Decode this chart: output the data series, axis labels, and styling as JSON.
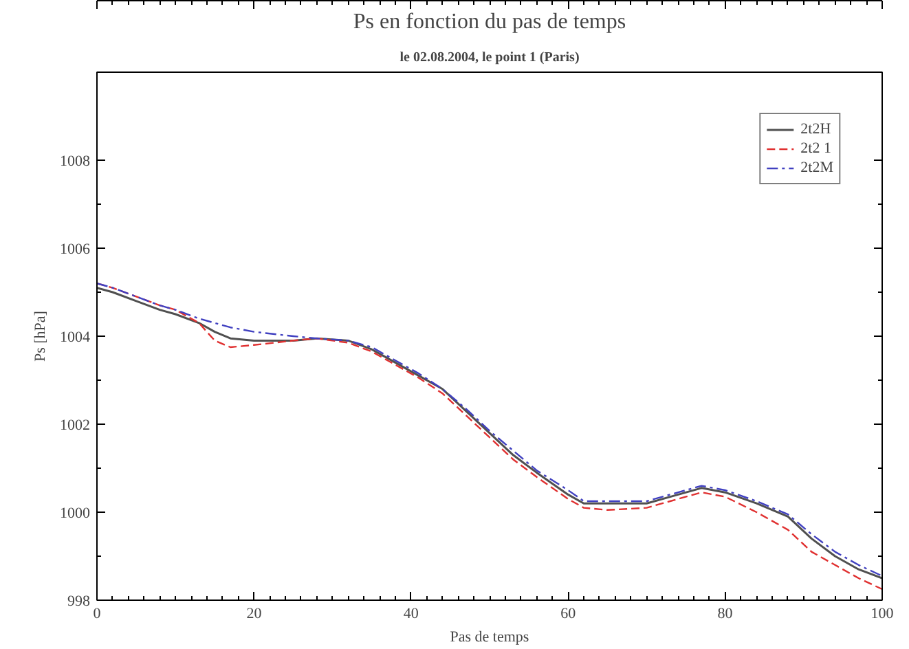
{
  "chart_data": {
    "type": "line",
    "title": "Ps en fonction du pas de temps",
    "subtitle": "le 02.08.2004, le point 1 (Paris)",
    "xlabel": "Pas de temps",
    "ylabel": "Ps [hPa]",
    "x": [
      0,
      2,
      5,
      8,
      10,
      13,
      15,
      17,
      20,
      25,
      28,
      32,
      35,
      38,
      41,
      44,
      47,
      50,
      53,
      56,
      60,
      62,
      65,
      70,
      73,
      77,
      80,
      84,
      88,
      91,
      94,
      97,
      100
    ],
    "series": [
      {
        "name": "2t2H",
        "color": "#505050",
        "line_style": "solid",
        "values": [
          1005.1,
          1005.0,
          1004.8,
          1004.6,
          1004.5,
          1004.3,
          1004.1,
          1003.95,
          1003.9,
          1003.9,
          1003.95,
          1003.9,
          1003.7,
          1003.4,
          1003.1,
          1002.8,
          1002.3,
          1001.8,
          1001.3,
          1000.9,
          1000.4,
          1000.2,
          1000.2,
          1000.2,
          1000.35,
          1000.55,
          1000.45,
          1000.2,
          999.9,
          999.4,
          999.0,
          998.7,
          998.5
        ]
      },
      {
        "name": "2t2 1",
        "color": "#e03030",
        "line_style": "dashed",
        "values": [
          1005.2,
          1005.1,
          1004.9,
          1004.7,
          1004.6,
          1004.3,
          1003.9,
          1003.75,
          1003.8,
          1003.9,
          1003.95,
          1003.85,
          1003.65,
          1003.35,
          1003.05,
          1002.7,
          1002.2,
          1001.7,
          1001.2,
          1000.8,
          1000.3,
          1000.1,
          1000.05,
          1000.1,
          1000.25,
          1000.45,
          1000.35,
          1000.0,
          999.6,
          999.1,
          998.8,
          998.5,
          998.25
        ]
      },
      {
        "name": "2t2M",
        "color": "#4040c0",
        "line_style": "dashdot",
        "values": [
          1005.2,
          1005.1,
          1004.9,
          1004.7,
          1004.6,
          1004.4,
          1004.3,
          1004.2,
          1004.1,
          1004.0,
          1003.95,
          1003.9,
          1003.75,
          1003.45,
          1003.15,
          1002.8,
          1002.35,
          1001.85,
          1001.4,
          1000.95,
          1000.5,
          1000.25,
          1000.25,
          1000.25,
          1000.4,
          1000.6,
          1000.5,
          1000.25,
          999.95,
          999.5,
          999.1,
          998.8,
          998.55
        ]
      }
    ],
    "xlim": [
      0,
      100
    ],
    "xticks": [
      0,
      20,
      40,
      60,
      80,
      100
    ],
    "ylim": [
      998,
      1010
    ],
    "yticks": [
      998,
      1000,
      1002,
      1004,
      1006,
      1008
    ],
    "grid": false,
    "legend": "top right",
    "marker": "none"
  }
}
